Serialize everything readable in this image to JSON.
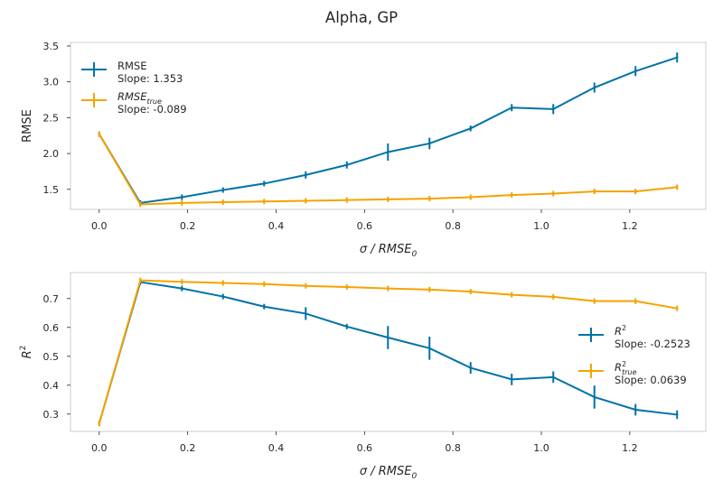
{
  "figure": {
    "title": "Alpha, GP"
  },
  "colors": {
    "blue": "#0072a8",
    "orange": "#f5a300",
    "frame": "#cccccc",
    "text": "#262626"
  },
  "chart_data": [
    {
      "type": "line",
      "xlabel": "σ / RMSE",
      "xlabel_sub": "0",
      "ylabel": "RMSE",
      "xlim": [
        -0.065,
        1.372
      ],
      "ylim": [
        1.22,
        3.55
      ],
      "xticks": [
        0.0,
        0.2,
        0.4,
        0.6,
        0.8,
        1.0,
        1.2
      ],
      "xtick_labels": [
        "0.0",
        "0.2",
        "0.4",
        "0.6",
        "0.8",
        "1.0",
        "1.2"
      ],
      "yticks": [
        1.5,
        2.0,
        2.5,
        3.0,
        3.5
      ],
      "ytick_labels": [
        "1.5",
        "2.0",
        "2.5",
        "3.0",
        "3.5"
      ],
      "legend": "upper-left",
      "grid": false,
      "series": [
        {
          "name": "RMSE",
          "slope_label": "Slope: 1.353",
          "color": "#0072a8",
          "x": [
            0.0,
            0.093,
            0.187,
            0.28,
            0.373,
            0.467,
            0.56,
            0.653,
            0.747,
            0.84,
            0.933,
            1.027,
            1.12,
            1.213,
            1.307
          ],
          "y": [
            2.27,
            1.31,
            1.39,
            1.49,
            1.58,
            1.7,
            1.84,
            2.02,
            2.14,
            2.35,
            2.64,
            2.62,
            2.92,
            3.15,
            3.34
          ],
          "err": [
            0.01,
            0.02,
            0.02,
            0.02,
            0.02,
            0.05,
            0.05,
            0.12,
            0.08,
            0.04,
            0.05,
            0.07,
            0.07,
            0.07,
            0.07
          ]
        },
        {
          "name": "RMSE",
          "name_sub": "true",
          "slope_label": "Slope: -0.089",
          "color": "#f5a300",
          "x": [
            0.0,
            0.093,
            0.187,
            0.28,
            0.373,
            0.467,
            0.56,
            0.653,
            0.747,
            0.84,
            0.933,
            1.027,
            1.12,
            1.213,
            1.307
          ],
          "y": [
            2.27,
            1.29,
            1.31,
            1.32,
            1.33,
            1.34,
            1.35,
            1.36,
            1.37,
            1.39,
            1.42,
            1.44,
            1.47,
            1.47,
            1.53
          ],
          "err": [
            0.01,
            0.01,
            0.01,
            0.01,
            0.01,
            0.01,
            0.01,
            0.01,
            0.01,
            0.01,
            0.01,
            0.02,
            0.02,
            0.01,
            0.01
          ]
        }
      ]
    },
    {
      "type": "line",
      "xlabel": "σ / RMSE",
      "xlabel_sub": "0",
      "ylabel": "R",
      "ylabel_sup": "2",
      "xlim": [
        -0.065,
        1.372
      ],
      "ylim": [
        0.24,
        0.79
      ],
      "xticks": [
        0.0,
        0.2,
        0.4,
        0.6,
        0.8,
        1.0,
        1.2
      ],
      "xtick_labels": [
        "0.0",
        "0.2",
        "0.4",
        "0.6",
        "0.8",
        "1.0",
        "1.2"
      ],
      "yticks": [
        0.3,
        0.4,
        0.5,
        0.6,
        0.7
      ],
      "ytick_labels": [
        "0.3",
        "0.4",
        "0.5",
        "0.6",
        "0.7"
      ],
      "legend": "center-right",
      "grid": false,
      "series": [
        {
          "name": "R",
          "name_sup": "2",
          "slope_label": "Slope: -0.2523",
          "color": "#0072a8",
          "x": [
            0.0,
            0.093,
            0.187,
            0.28,
            0.373,
            0.467,
            0.56,
            0.653,
            0.747,
            0.84,
            0.933,
            1.027,
            1.12,
            1.213,
            1.307
          ],
          "y": [
            0.268,
            0.757,
            0.735,
            0.707,
            0.672,
            0.648,
            0.603,
            0.565,
            0.528,
            0.46,
            0.42,
            0.428,
            0.359,
            0.315,
            0.298
          ],
          "err": [
            0.003,
            0.005,
            0.005,
            0.006,
            0.008,
            0.022,
            0.008,
            0.04,
            0.04,
            0.02,
            0.02,
            0.02,
            0.04,
            0.02,
            0.015
          ]
        },
        {
          "name": "R",
          "name_sup": "2",
          "name_sub": "true",
          "slope_label": "Slope: 0.0639",
          "color": "#f5a300",
          "x": [
            0.0,
            0.093,
            0.187,
            0.28,
            0.373,
            0.467,
            0.56,
            0.653,
            0.747,
            0.84,
            0.933,
            1.027,
            1.12,
            1.213,
            1.307
          ],
          "y": [
            0.268,
            0.763,
            0.758,
            0.754,
            0.75,
            0.744,
            0.74,
            0.735,
            0.731,
            0.724,
            0.713,
            0.706,
            0.691,
            0.691,
            0.666
          ],
          "err": [
            0.003,
            0.004,
            0.004,
            0.004,
            0.004,
            0.005,
            0.005,
            0.005,
            0.005,
            0.005,
            0.005,
            0.008,
            0.008,
            0.01,
            0.005
          ]
        }
      ]
    }
  ]
}
